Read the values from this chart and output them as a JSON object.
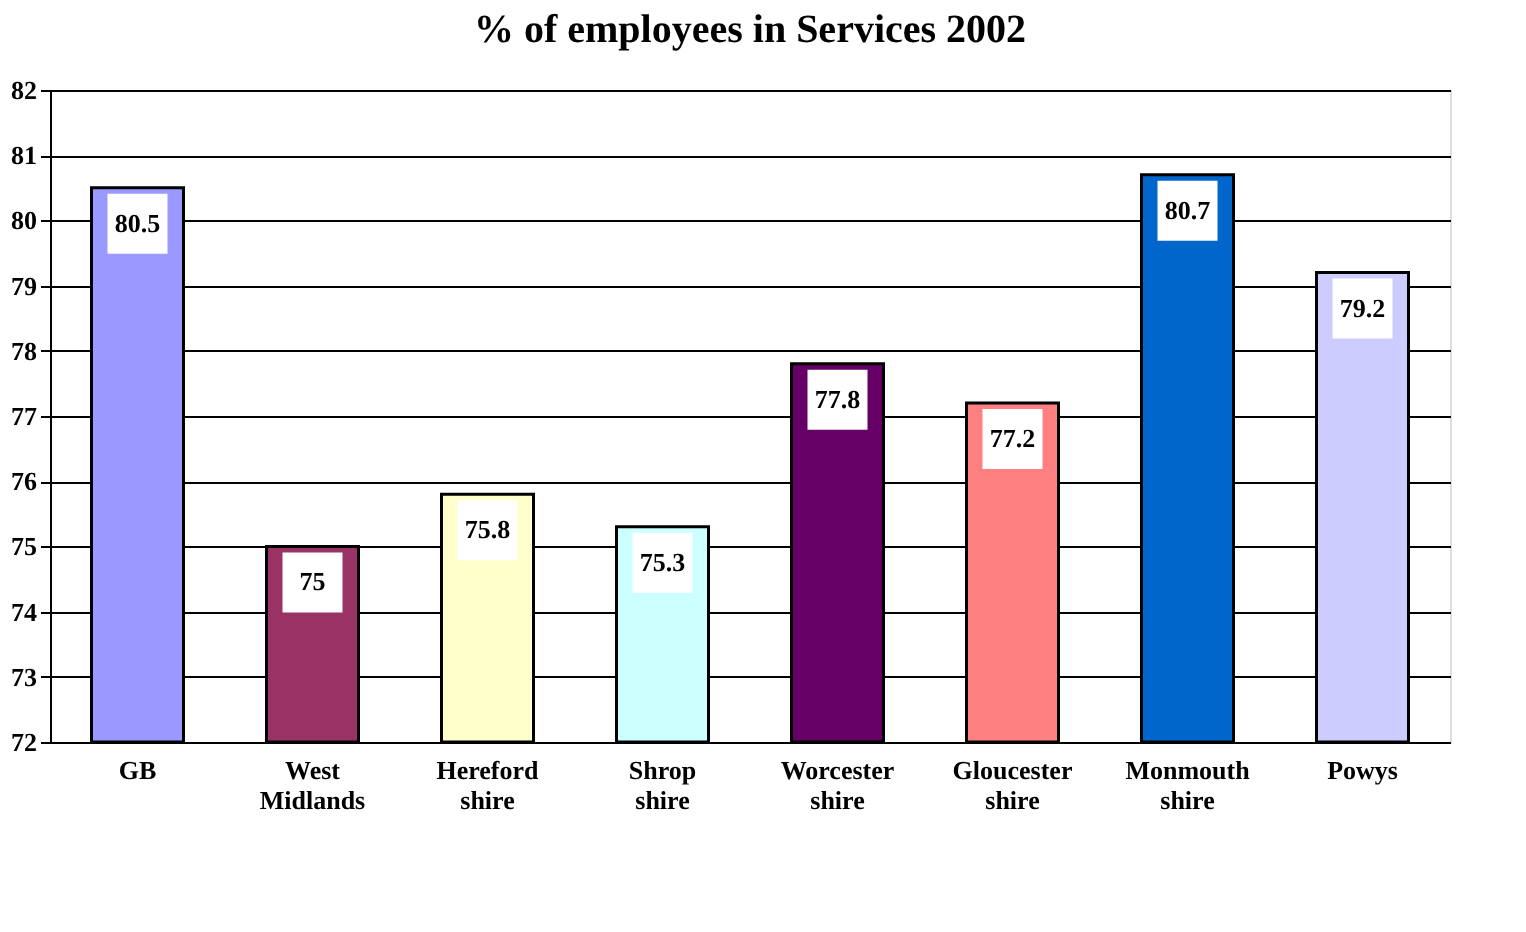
{
  "chart_data": {
    "type": "bar",
    "title": "% of employees in Services 2002",
    "categories": [
      "GB",
      "West Midlands",
      "Hereford shire",
      "Shrop shire",
      "Worcester shire",
      "Gloucester shire",
      "Monmouth shire",
      "Powys"
    ],
    "values": [
      80.5,
      75,
      75.8,
      75.3,
      77.8,
      77.2,
      80.7,
      79.2
    ],
    "colors": [
      "#9999ff",
      "#993366",
      "#ffffcc",
      "#ccffff",
      "#660066",
      "#ff8080",
      "#0066cc",
      "#ccccff"
    ],
    "ylim": [
      72,
      82
    ],
    "yticks": [
      72,
      73,
      74,
      75,
      76,
      77,
      78,
      79,
      80,
      81,
      82
    ],
    "grid": "y",
    "data_labels": true
  }
}
